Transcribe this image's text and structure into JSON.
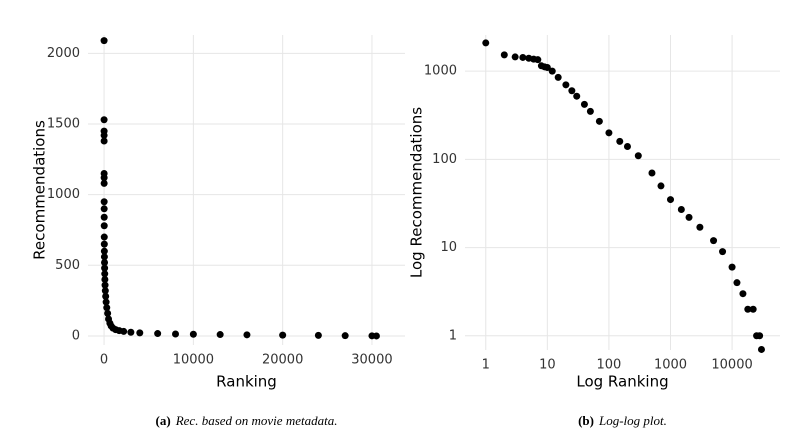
{
  "chart_data": [
    {
      "type": "scatter",
      "x_label": "Ranking",
      "y_label": "Recommendations",
      "caption_label": "(a)",
      "caption": "Rec. based on movie metadata.",
      "color": "#000000",
      "grid": true,
      "log_x": false,
      "log_y": false,
      "xlim": [
        -1800,
        33700
      ],
      "ylim": [
        -64,
        2130
      ],
      "xticks": [
        0,
        10000,
        20000,
        30000
      ],
      "yticks": [
        0,
        500,
        1000,
        1500,
        2000
      ],
      "x": [
        1,
        2,
        3,
        4,
        5,
        6,
        7,
        8,
        10,
        12,
        15,
        18,
        22,
        27,
        33,
        40,
        50,
        60,
        75,
        90,
        110,
        140,
        180,
        230,
        300,
        400,
        500,
        650,
        800,
        1000,
        1300,
        1700,
        2200,
        3000,
        4000,
        6000,
        8000,
        10000,
        13000,
        16000,
        20000,
        24000,
        27000,
        30000,
        30500
      ],
      "values": [
        2090,
        1530,
        1450,
        1420,
        1380,
        1150,
        1120,
        1080,
        950,
        900,
        840,
        780,
        700,
        650,
        600,
        560,
        520,
        480,
        440,
        400,
        360,
        320,
        280,
        240,
        200,
        160,
        120,
        90,
        70,
        55,
        45,
        38,
        32,
        26,
        22,
        17,
        14,
        12,
        10,
        8,
        6,
        4,
        2,
        1,
        0
      ]
    },
    {
      "type": "scatter",
      "x_label": "Log Ranking",
      "y_label": "Log Recommendations",
      "caption_label": "(b)",
      "caption": "Log-log plot.",
      "color": "#000000",
      "grid": true,
      "log_x": true,
      "log_y": true,
      "xlim": [
        0.46,
        60000
      ],
      "ylim": [
        0.69,
        2570
      ],
      "xticks": [
        1,
        10,
        100,
        1000,
        10000
      ],
      "yticks": [
        1,
        10,
        100,
        1000
      ],
      "x": [
        1,
        2,
        3,
        4,
        5,
        6,
        7,
        8,
        9,
        10,
        12,
        15,
        20,
        25,
        30,
        40,
        50,
        70,
        100,
        150,
        200,
        300,
        500,
        700,
        1000,
        1500,
        2000,
        3000,
        5000,
        7000,
        10000,
        12000,
        15000,
        18000,
        22000,
        25000,
        28000,
        30000
      ],
      "values": [
        2090,
        1530,
        1450,
        1430,
        1400,
        1370,
        1350,
        1150,
        1120,
        1100,
        1000,
        850,
        700,
        600,
        520,
        420,
        350,
        270,
        200,
        160,
        140,
        110,
        70,
        50,
        35,
        27,
        22,
        17,
        12,
        9,
        6,
        4,
        3,
        2,
        2,
        1,
        1,
        0.7
      ]
    }
  ]
}
